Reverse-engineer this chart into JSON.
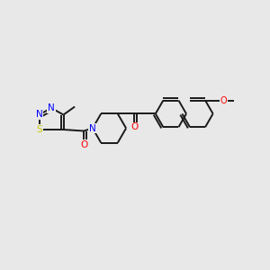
{
  "background_color": "#e8e8e8",
  "line_color": "#1a1a1a",
  "line_width": 1.4,
  "font_size": 7.5,
  "fig_width": 3.0,
  "fig_height": 3.0,
  "dpi": 100,
  "S_color": "#c8c800",
  "N_color": "#0000ff",
  "O_color": "#ff0000",
  "xlim": [
    0,
    10
  ],
  "ylim": [
    0,
    10
  ]
}
